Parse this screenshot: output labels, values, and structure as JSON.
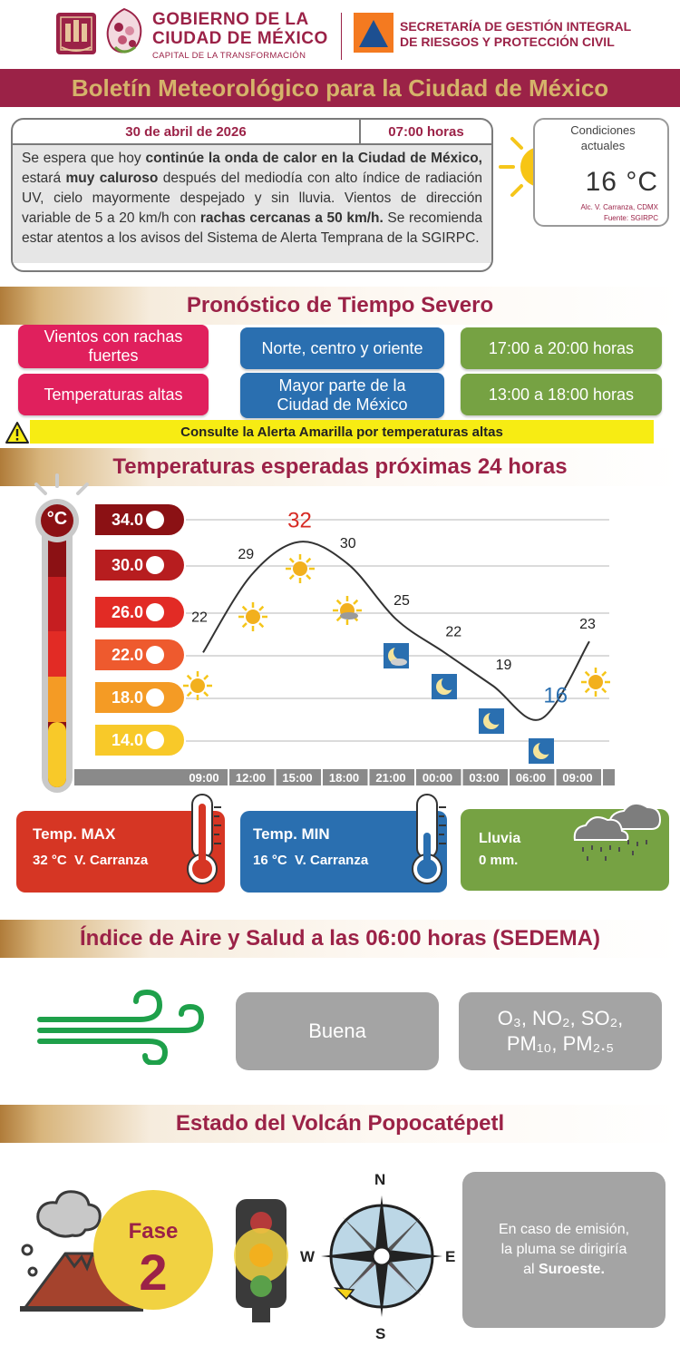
{
  "header": {
    "gov_line1": "GOBIERNO DE LA",
    "gov_line2": "CIUDAD DE MÉXICO",
    "gov_sub": "CAPITAL DE LA TRANSFORMACIÓN",
    "sec_line1": "SECRETARÍA DE GESTIÓN INTEGRAL",
    "sec_line2": "DE RIESGOS Y PROTECCIÓN CIVIL"
  },
  "title": "Boletín Meteorológico para la Ciudad de México",
  "bulletin": {
    "date": "30 de abril de 2026",
    "time": "07:00 horas",
    "text_parts": [
      {
        "t": "Se espera que hoy ",
        "b": false
      },
      {
        "t": "continúe la onda de calor en la Ciudad de México,",
        "b": true
      },
      {
        "t": " estará ",
        "b": false
      },
      {
        "t": "muy caluroso",
        "b": true
      },
      {
        "t": " después del mediodía con alto índice de radiación UV, cielo mayormente despejado y sin lluvia. Vientos de dirección variable de 5 a 20 km/h con ",
        "b": false
      },
      {
        "t": "rachas cercanas a 50 km/h.",
        "b": true
      },
      {
        "t": " Se recomienda estar atentos a los avisos del Sistema de Alerta Temprana de la SGIRPC.",
        "b": false
      }
    ]
  },
  "current": {
    "label_line1": "Condiciones",
    "label_line2": "actuales",
    "temp": "16 °C",
    "location": "Alc. V. Carranza, CDMX",
    "source": "Fuente: SGIRPC"
  },
  "severe": {
    "title": "Pronóstico de Tiempo Severo",
    "rows": [
      {
        "phenomenon": "Vientos con rachas fuertes",
        "area": "Norte, centro y oriente",
        "hours": "17:00 a 20:00 horas"
      },
      {
        "phenomenon": "Temperaturas altas",
        "area": "Mayor parte de la Ciudad de México",
        "hours": "13:00 a 18:00 horas"
      }
    ],
    "alert": "Consulte la Alerta Amarilla por temperaturas altas"
  },
  "temps": {
    "title": "Temperaturas esperadas próximas 24 horas",
    "unit": "°C",
    "scale": [
      "34.0",
      "30.0",
      "26.0",
      "22.0",
      "18.0",
      "14.0"
    ],
    "scale_colors": [
      "#8b1114",
      "#b71d1f",
      "#e22b25",
      "#ee5a2e",
      "#f49b25",
      "#f8c929"
    ],
    "hour_labels": [
      "09:00",
      "12:00",
      "15:00",
      "18:00",
      "21:00",
      "00:00",
      "03:00",
      "06:00",
      "09:00"
    ],
    "value_labels": [
      "22",
      "29",
      "32",
      "30",
      "25",
      "22",
      "19",
      "16",
      "23"
    ],
    "icons": [
      "sun",
      "sun",
      "sun",
      "sun-cloud",
      "moon-cloud",
      "moon",
      "moon",
      "moon",
      "sun"
    ]
  },
  "chart_data": {
    "type": "line",
    "title": "Temperaturas esperadas próximas 24 horas",
    "x": [
      "09:00",
      "12:00",
      "15:00",
      "18:00",
      "21:00",
      "00:00",
      "03:00",
      "06:00",
      "09:00"
    ],
    "series": [
      {
        "values": [
          22,
          29,
          32,
          30,
          25,
          22,
          19,
          16,
          23
        ]
      }
    ],
    "ylabel": "°C",
    "yticks": [
      14,
      18,
      22,
      26,
      30,
      34
    ],
    "ylim": [
      14,
      34
    ],
    "grid": true
  },
  "cards": {
    "max_label": "Temp. MAX",
    "max_value": "32 °C  V. Carranza",
    "min_label": "Temp. MIN",
    "min_value": "16 °C  V. Carranza",
    "rain_label": "Lluvia",
    "rain_value": "0 mm."
  },
  "air": {
    "title": "Índice de Aire y Salud a las 06:00 horas (SEDEMA)",
    "quality": "Buena",
    "pollutants_line1": "O₃, NO₂, SO₂,",
    "pollutants_line2": "PM₁₀, PM₂.₅"
  },
  "volcano": {
    "title": "Estado del Volcán Popocatépetl",
    "phase_label": "Fase",
    "phase_number": "2",
    "compass": {
      "n": "N",
      "s": "S",
      "e": "E",
      "w": "W"
    },
    "plume_text_1": "En caso de emisión,",
    "plume_text_2": "la pluma se dirigiría",
    "plume_text_3": "al ",
    "plume_direction": "Suroeste."
  }
}
